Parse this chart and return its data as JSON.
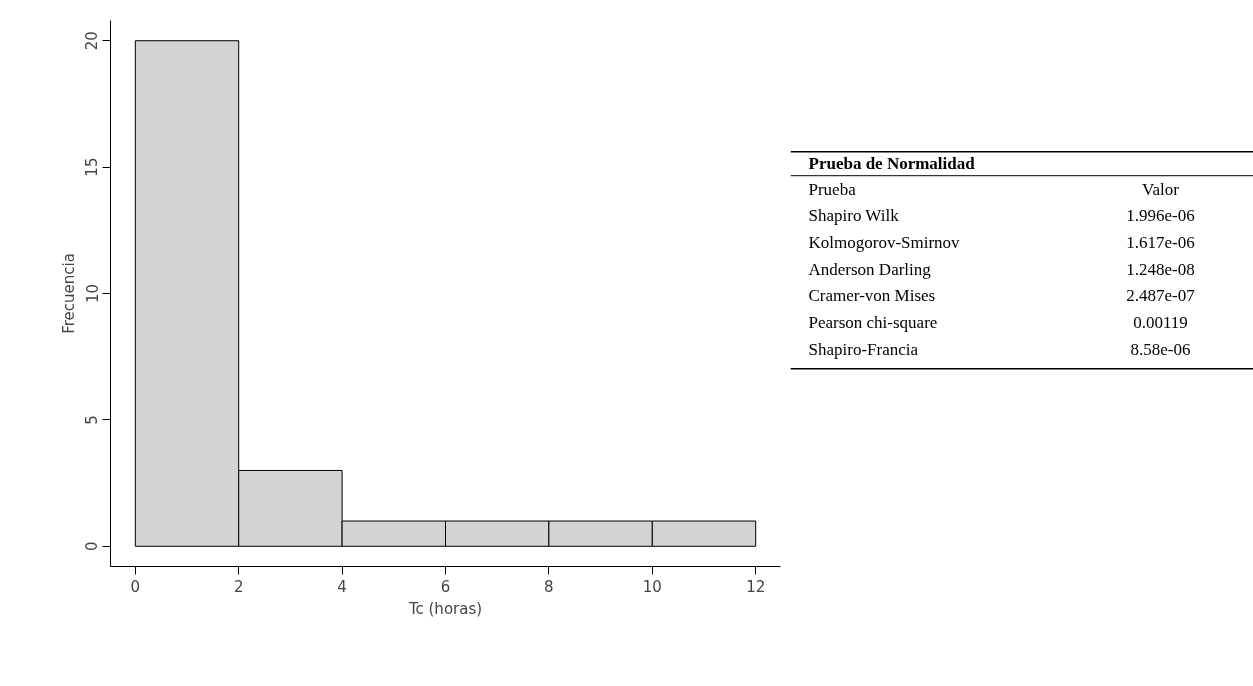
{
  "chart_data": [
    {
      "type": "histogram",
      "xlabel": "Tc (horas)",
      "ylabel": "Frecuencia",
      "bins": [
        0,
        2,
        4,
        6,
        8,
        10,
        12
      ],
      "values": [
        20,
        3,
        1,
        1,
        1,
        1
      ],
      "color": "#d3d3d3",
      "xlim": [
        -0.48,
        12.48
      ],
      "xticks": [
        0,
        2,
        4,
        6,
        8,
        10,
        12
      ],
      "ylim": [
        -0.8,
        20.8
      ],
      "yticks": [
        0,
        5,
        10,
        15,
        20
      ],
      "grid": false
    },
    {
      "type": "other",
      "title": "Prueba de Normalidad",
      "annotations": [
        "Prueba",
        "Valor",
        "Shapiro Wilk",
        "1.996e-06",
        "Kolmogorov-Smirnov",
        "1.617e-06",
        "Anderson Darling",
        "1.248e-08",
        "Cramer-von Mises",
        "2.487e-07",
        "Pearson chi-square",
        "0.00119",
        "Shapiro-Francia",
        "8.58e-06"
      ]
    }
  ]
}
